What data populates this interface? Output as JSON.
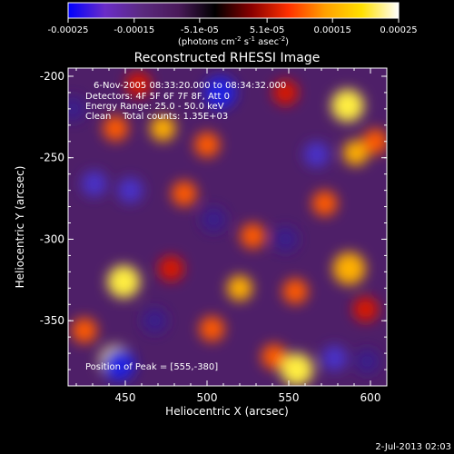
{
  "chart_data": {
    "type": "heatmap",
    "title": "Reconstructed RHESSI Image",
    "xlabel": "Heliocentric X (arcsec)",
    "ylabel": "Heliocentric Y (arcsec)",
    "xlim": [
      415,
      610
    ],
    "ylim": [
      -390,
      -195
    ],
    "x_ticks": [
      "450",
      "500",
      "550",
      "600"
    ],
    "x_tick_values": [
      450,
      500,
      550,
      600
    ],
    "y_ticks": [
      "-200",
      "-250",
      "-300",
      "-350"
    ],
    "y_tick_values": [
      -200,
      -250,
      -300,
      -350
    ],
    "colorbar": {
      "ticks": [
        "-0.00025",
        "-0.00015",
        "-5.1e-05",
        "5.1e-05",
        "0.00015",
        "0.00025"
      ],
      "tick_values": [
        -0.00025,
        -0.00015,
        -5.1e-05,
        5.1e-05,
        0.00015,
        0.00025
      ],
      "range": [
        -0.00025,
        0.00025
      ],
      "colors": [
        "#0000ff",
        "#6a2cc8",
        "#5b2a80",
        "#4a1a5a",
        "#000000",
        "#8a0000",
        "#ff3000",
        "#ffa000",
        "#ffe000",
        "#ffffff"
      ]
    },
    "units_label_pre": "(photons cm",
    "units_sup1": "-2",
    "units_mid": " s",
    "units_sup2": "-1",
    "units_mid2": " asec",
    "units_sup3": "-2",
    "units_post": ")",
    "annotations": {
      "time": "6-Nov-2005 08:33:20.000 to 08:34:32.000",
      "detectors": "Detectors: 4F 5F 6F 7F 8F, Att 0",
      "energy": "Energy Range: 25.0 - 50.0 keV",
      "clean": "Clean    Total counts: 1.35E+03",
      "peak": "Position of Peak = [555,-380]"
    },
    "blobs": [
      {
        "x": 449,
        "y": -326,
        "v": 0.00025
      },
      {
        "x": 444,
        "y": -375,
        "v": 0.00022
      },
      {
        "x": 444,
        "y": -232,
        "v": 0.00015
      },
      {
        "x": 473,
        "y": -232,
        "v": 0.00018
      },
      {
        "x": 486,
        "y": -272,
        "v": 0.00016
      },
      {
        "x": 478,
        "y": -318,
        "v": 0.00012
      },
      {
        "x": 500,
        "y": -242,
        "v": 0.00014
      },
      {
        "x": 503,
        "y": -355,
        "v": 0.00016
      },
      {
        "x": 520,
        "y": -330,
        "v": 0.00018
      },
      {
        "x": 528,
        "y": -298,
        "v": 0.00013
      },
      {
        "x": 541,
        "y": -372,
        "v": 0.00016
      },
      {
        "x": 554,
        "y": -332,
        "v": 0.00014
      },
      {
        "x": 555,
        "y": -380,
        "v": 0.00025
      },
      {
        "x": 572,
        "y": -278,
        "v": 0.00015
      },
      {
        "x": 586,
        "y": -218,
        "v": 0.00022
      },
      {
        "x": 591,
        "y": -247,
        "v": 0.00018
      },
      {
        "x": 603,
        "y": -240,
        "v": 0.00016
      },
      {
        "x": 587,
        "y": -318,
        "v": 0.0002
      },
      {
        "x": 597,
        "y": -343,
        "v": 0.00012
      },
      {
        "x": 425,
        "y": -356,
        "v": 0.00016
      },
      {
        "x": 548,
        "y": -210,
        "v": 0.00012
      },
      {
        "x": 458,
        "y": -205,
        "v": 0.00012
      },
      {
        "x": 508,
        "y": -210,
        "v": -0.00022
      },
      {
        "x": 446,
        "y": -377,
        "v": -0.0002
      },
      {
        "x": 431,
        "y": -266,
        "v": -0.00016
      },
      {
        "x": 453,
        "y": -270,
        "v": -0.00014
      },
      {
        "x": 567,
        "y": -248,
        "v": -0.00015
      },
      {
        "x": 504,
        "y": -288,
        "v": -0.00012
      },
      {
        "x": 578,
        "y": -373,
        "v": -0.00016
      },
      {
        "x": 598,
        "y": -375,
        "v": -0.0001
      },
      {
        "x": 418,
        "y": -220,
        "v": -0.0001
      },
      {
        "x": 548,
        "y": -300,
        "v": -0.00012
      },
      {
        "x": 468,
        "y": -350,
        "v": -0.0001
      }
    ]
  },
  "footer": {
    "date": "2-Jul-2013 02:03"
  }
}
